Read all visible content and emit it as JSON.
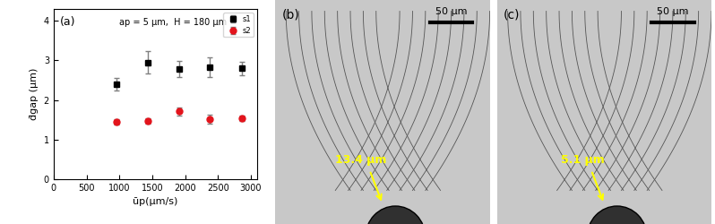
{
  "chart_data": {
    "type": "scatter",
    "panel_label": "(a)",
    "annotation": "ap = 5 μm,  H = 180 μm",
    "x_label": "ūp(μm/s)",
    "y_label": "d̄gap (μm)",
    "x": [
      960,
      1430,
      1910,
      2380,
      2860
    ],
    "series": [
      {
        "name": "s1",
        "color": "#000000",
        "marker": "square",
        "values": [
          2.4,
          2.95,
          2.78,
          2.83,
          2.8
        ],
        "errors": [
          0.15,
          0.28,
          0.2,
          0.25,
          0.17
        ]
      },
      {
        "name": "s2",
        "color": "#e3141c",
        "marker": "circle",
        "values": [
          1.45,
          1.48,
          1.71,
          1.52,
          1.54
        ],
        "errors": [
          0.07,
          0.07,
          0.1,
          0.11,
          0.07
        ]
      }
    ],
    "xlim": [
      0,
      3100
    ],
    "xticks": [
      0,
      500,
      1000,
      1500,
      2000,
      2500,
      3000
    ],
    "ylim": [
      0,
      4.3
    ],
    "yticks": [
      0,
      1,
      2,
      3,
      4
    ],
    "legend": "upper right"
  },
  "image_panels": [
    {
      "label": "(b)",
      "scale_bar": "50 μm",
      "gap_label": "13.4 μm"
    },
    {
      "label": "(c)",
      "scale_bar": "50 μm",
      "gap_label": "5.1 μm"
    }
  ]
}
